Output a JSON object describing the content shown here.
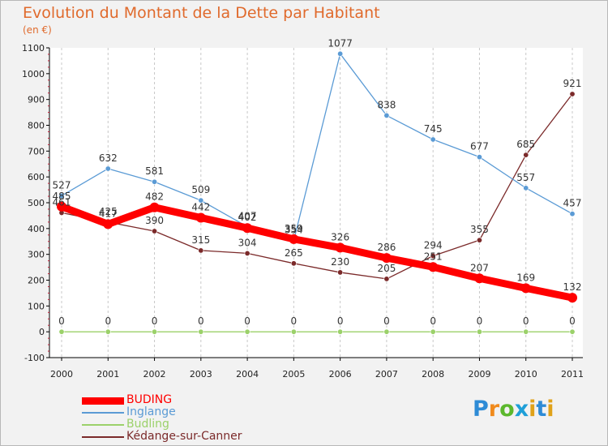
{
  "header": {
    "title": "Evolution du Montant de la Dette par Habitant",
    "subtitle": "(en €)"
  },
  "chart_data": {
    "type": "line",
    "title": "Evolution du Montant de la Dette par Habitant",
    "subtitle": "(en €)",
    "x": [
      "2000",
      "2001",
      "2002",
      "2003",
      "2004",
      "2005",
      "2006",
      "2007",
      "2008",
      "2009",
      "2010",
      "2011"
    ],
    "ylim": [
      -100,
      1100
    ],
    "yticks": [
      -100,
      0,
      100,
      200,
      300,
      400,
      500,
      600,
      700,
      800,
      900,
      1000,
      1100
    ],
    "grid": "vertical dashed",
    "legend_position": "bottom-left",
    "series": [
      {
        "name": "BUDING",
        "color": "#ff0000",
        "values": [
          485,
          417,
          482,
          442,
          402,
          359,
          326,
          286,
          251,
          207,
          169,
          132
        ],
        "labels": [
          "485",
          "417",
          "482",
          "442",
          "402",
          "359",
          "326",
          "286",
          "251",
          "207",
          "169",
          "132"
        ]
      },
      {
        "name": "Inglange",
        "color": "#5b9bd5",
        "values": [
          527,
          632,
          581,
          509,
          407,
          354,
          1077,
          838,
          745,
          677,
          557,
          457
        ],
        "labels": [
          "527",
          "632",
          "581",
          "509",
          "407",
          "354",
          "1077",
          "838",
          "745",
          "677",
          "557",
          "457"
        ]
      },
      {
        "name": "Budling",
        "color": "#9bd16a",
        "values": [
          0,
          0,
          0,
          0,
          0,
          0,
          0,
          0,
          0,
          0,
          0,
          0
        ],
        "labels": [
          "0",
          "0",
          "0",
          "0",
          "0",
          "0",
          "0",
          "0",
          "0",
          "0",
          "0",
          "0"
        ]
      },
      {
        "name": "Kédange-sur-Canner",
        "color": "#7b2a2a",
        "values": [
          461,
          425,
          390,
          315,
          304,
          265,
          230,
          205,
          294,
          355,
          685,
          921
        ],
        "labels": [
          "461",
          "425",
          "390",
          "315",
          "304",
          "265",
          "230",
          "205",
          "294",
          "355",
          "685",
          "921"
        ]
      }
    ]
  },
  "logo": {
    "letters": [
      "P",
      "r",
      "o",
      "x",
      "i",
      "t",
      "i"
    ],
    "colors": [
      "#2e8bd6",
      "#f08a1c",
      "#5cb82d",
      "#1f9fd8",
      "#e0a21a",
      "#2e8bd6",
      "#e0a21a"
    ]
  }
}
